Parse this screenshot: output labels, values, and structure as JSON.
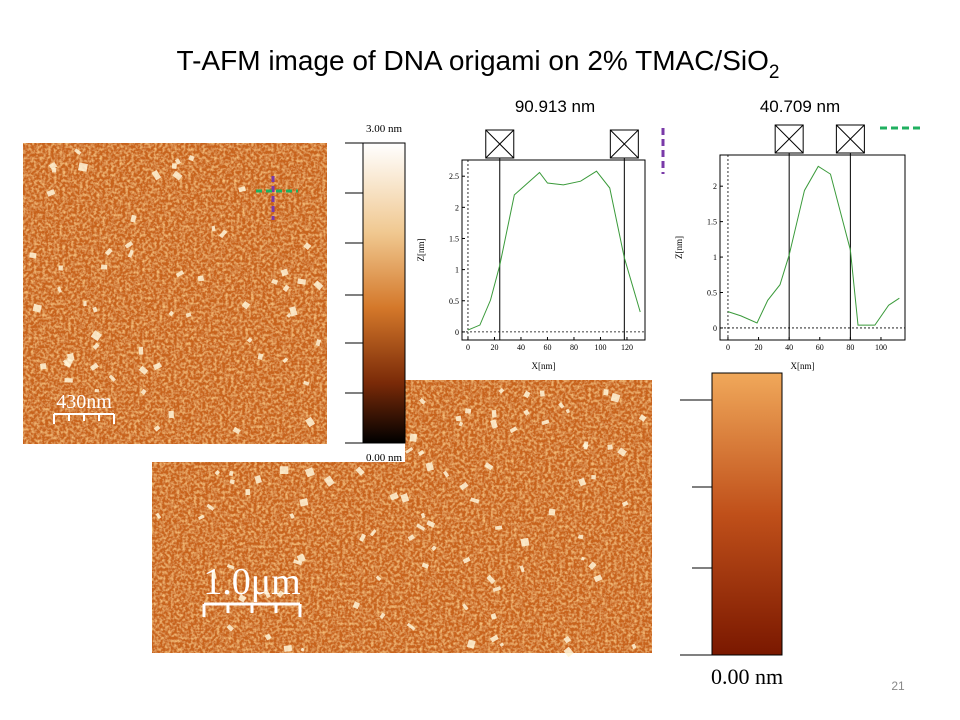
{
  "title": {
    "text": "T-AFM image of DNA origami on 2% TMAC/SiO",
    "subscript": "2"
  },
  "image_top": {
    "scale_bar": "430nm",
    "colorbar": {
      "max": "3.00 nm",
      "min": "0.00 nm"
    }
  },
  "image_bottom": {
    "scale_bar": "1.0μm",
    "colorbar": {
      "min": "0.00 nm"
    }
  },
  "profiles": [
    {
      "type": "line",
      "title": "90.913 nm",
      "xlabel": "X[nm]",
      "ylabel": "Z[nm]",
      "color": "#3a9a3a",
      "x": [
        0,
        9,
        17,
        24,
        35,
        54,
        60,
        72,
        85,
        97,
        107,
        118,
        130
      ],
      "values": [
        0.03,
        0.11,
        0.51,
        1.07,
        2.2,
        2.56,
        2.39,
        2.36,
        2.42,
        2.58,
        2.31,
        1.19,
        0.32
      ],
      "cursors": [
        24,
        118
      ],
      "xlim": [
        -4.5,
        133.6
      ],
      "ylim": [
        -0.13,
        2.76
      ],
      "xticks": [
        0,
        20,
        40,
        60,
        80,
        100,
        120
      ],
      "yticks": [
        0,
        0.5,
        1,
        1.5,
        2,
        2.5
      ]
    },
    {
      "type": "line",
      "title": "40.709 nm",
      "xlabel": "X[nm]",
      "ylabel": "Z[nm]",
      "color": "#3a9a3a",
      "x": [
        0,
        8.5,
        19,
        26,
        34,
        40,
        50,
        59,
        67,
        80,
        85,
        96,
        105,
        112
      ],
      "values": [
        0.23,
        0.17,
        0.07,
        0.39,
        0.61,
        1.03,
        1.94,
        2.28,
        2.17,
        1.1,
        0.04,
        0.04,
        0.32,
        0.42
      ],
      "cursors": [
        40,
        80
      ],
      "xlim": [
        -5.2,
        115.7
      ],
      "ylim": [
        -0.17,
        2.44
      ],
      "xticks": [
        0,
        20,
        40,
        60,
        80,
        100
      ],
      "yticks": [
        0,
        0.5,
        1,
        1.5,
        2
      ]
    }
  ],
  "page_number": "21"
}
